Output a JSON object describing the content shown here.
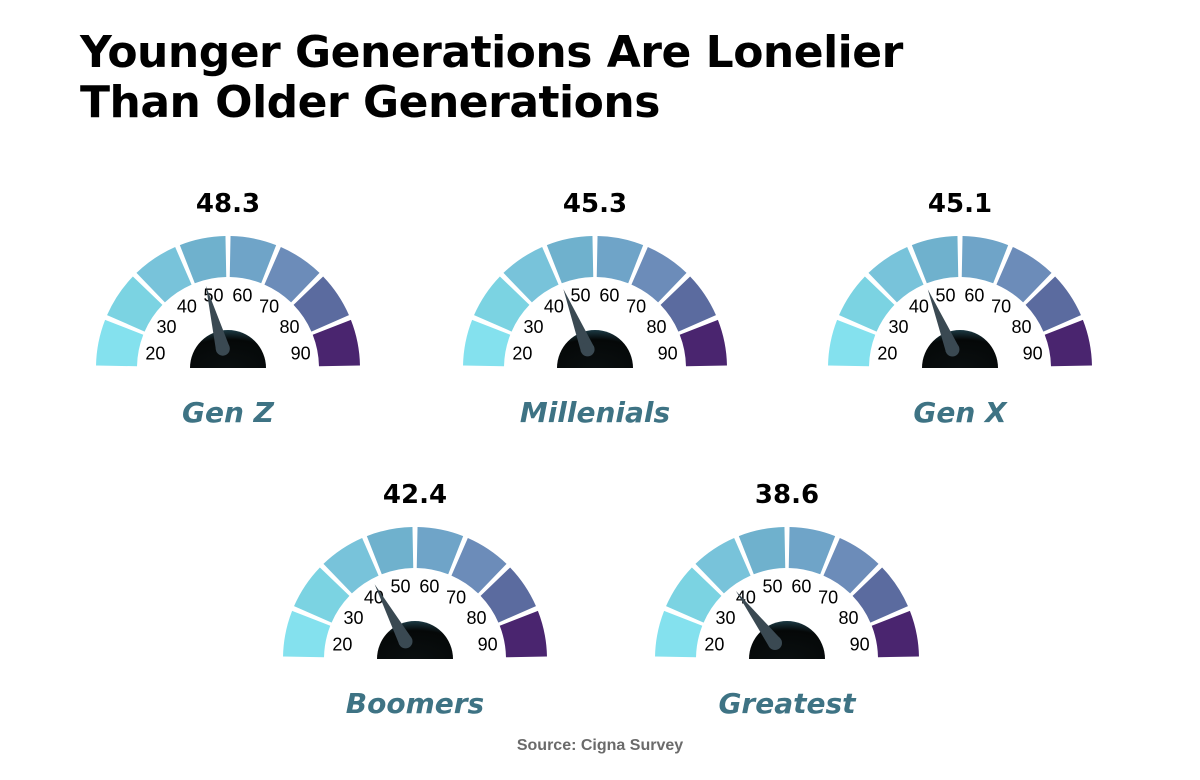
{
  "title": {
    "line1": "Younger Generations Are Lonelier",
    "line2": "Than Older Generations"
  },
  "source": "Source: Cigna Survey",
  "colors": {
    "segments": [
      "#84e1ee",
      "#7bd3e2",
      "#78c3da",
      "#6fb1cd",
      "#6fa4c8",
      "#6c8cb9",
      "#5b6b9f",
      "#4a256f"
    ],
    "label": "#3e7384",
    "needle": "#3a4952",
    "hub": "#050808"
  },
  "chart_data": {
    "type": "gauge",
    "scale": {
      "min": 15,
      "max": 95,
      "ticks": [
        20,
        30,
        40,
        50,
        60,
        70,
        80,
        90
      ]
    },
    "gauges": [
      {
        "label": "Gen Z",
        "value": 48.3,
        "value_text": "48.3"
      },
      {
        "label": "Millenials",
        "value": 45.3,
        "value_text": "45.3"
      },
      {
        "label": "Gen X",
        "value": 45.1,
        "value_text": "45.1"
      },
      {
        "label": "Boomers",
        "value": 42.4,
        "value_text": "42.4"
      },
      {
        "label": "Greatest",
        "value": 38.6,
        "value_text": "38.6"
      }
    ]
  }
}
